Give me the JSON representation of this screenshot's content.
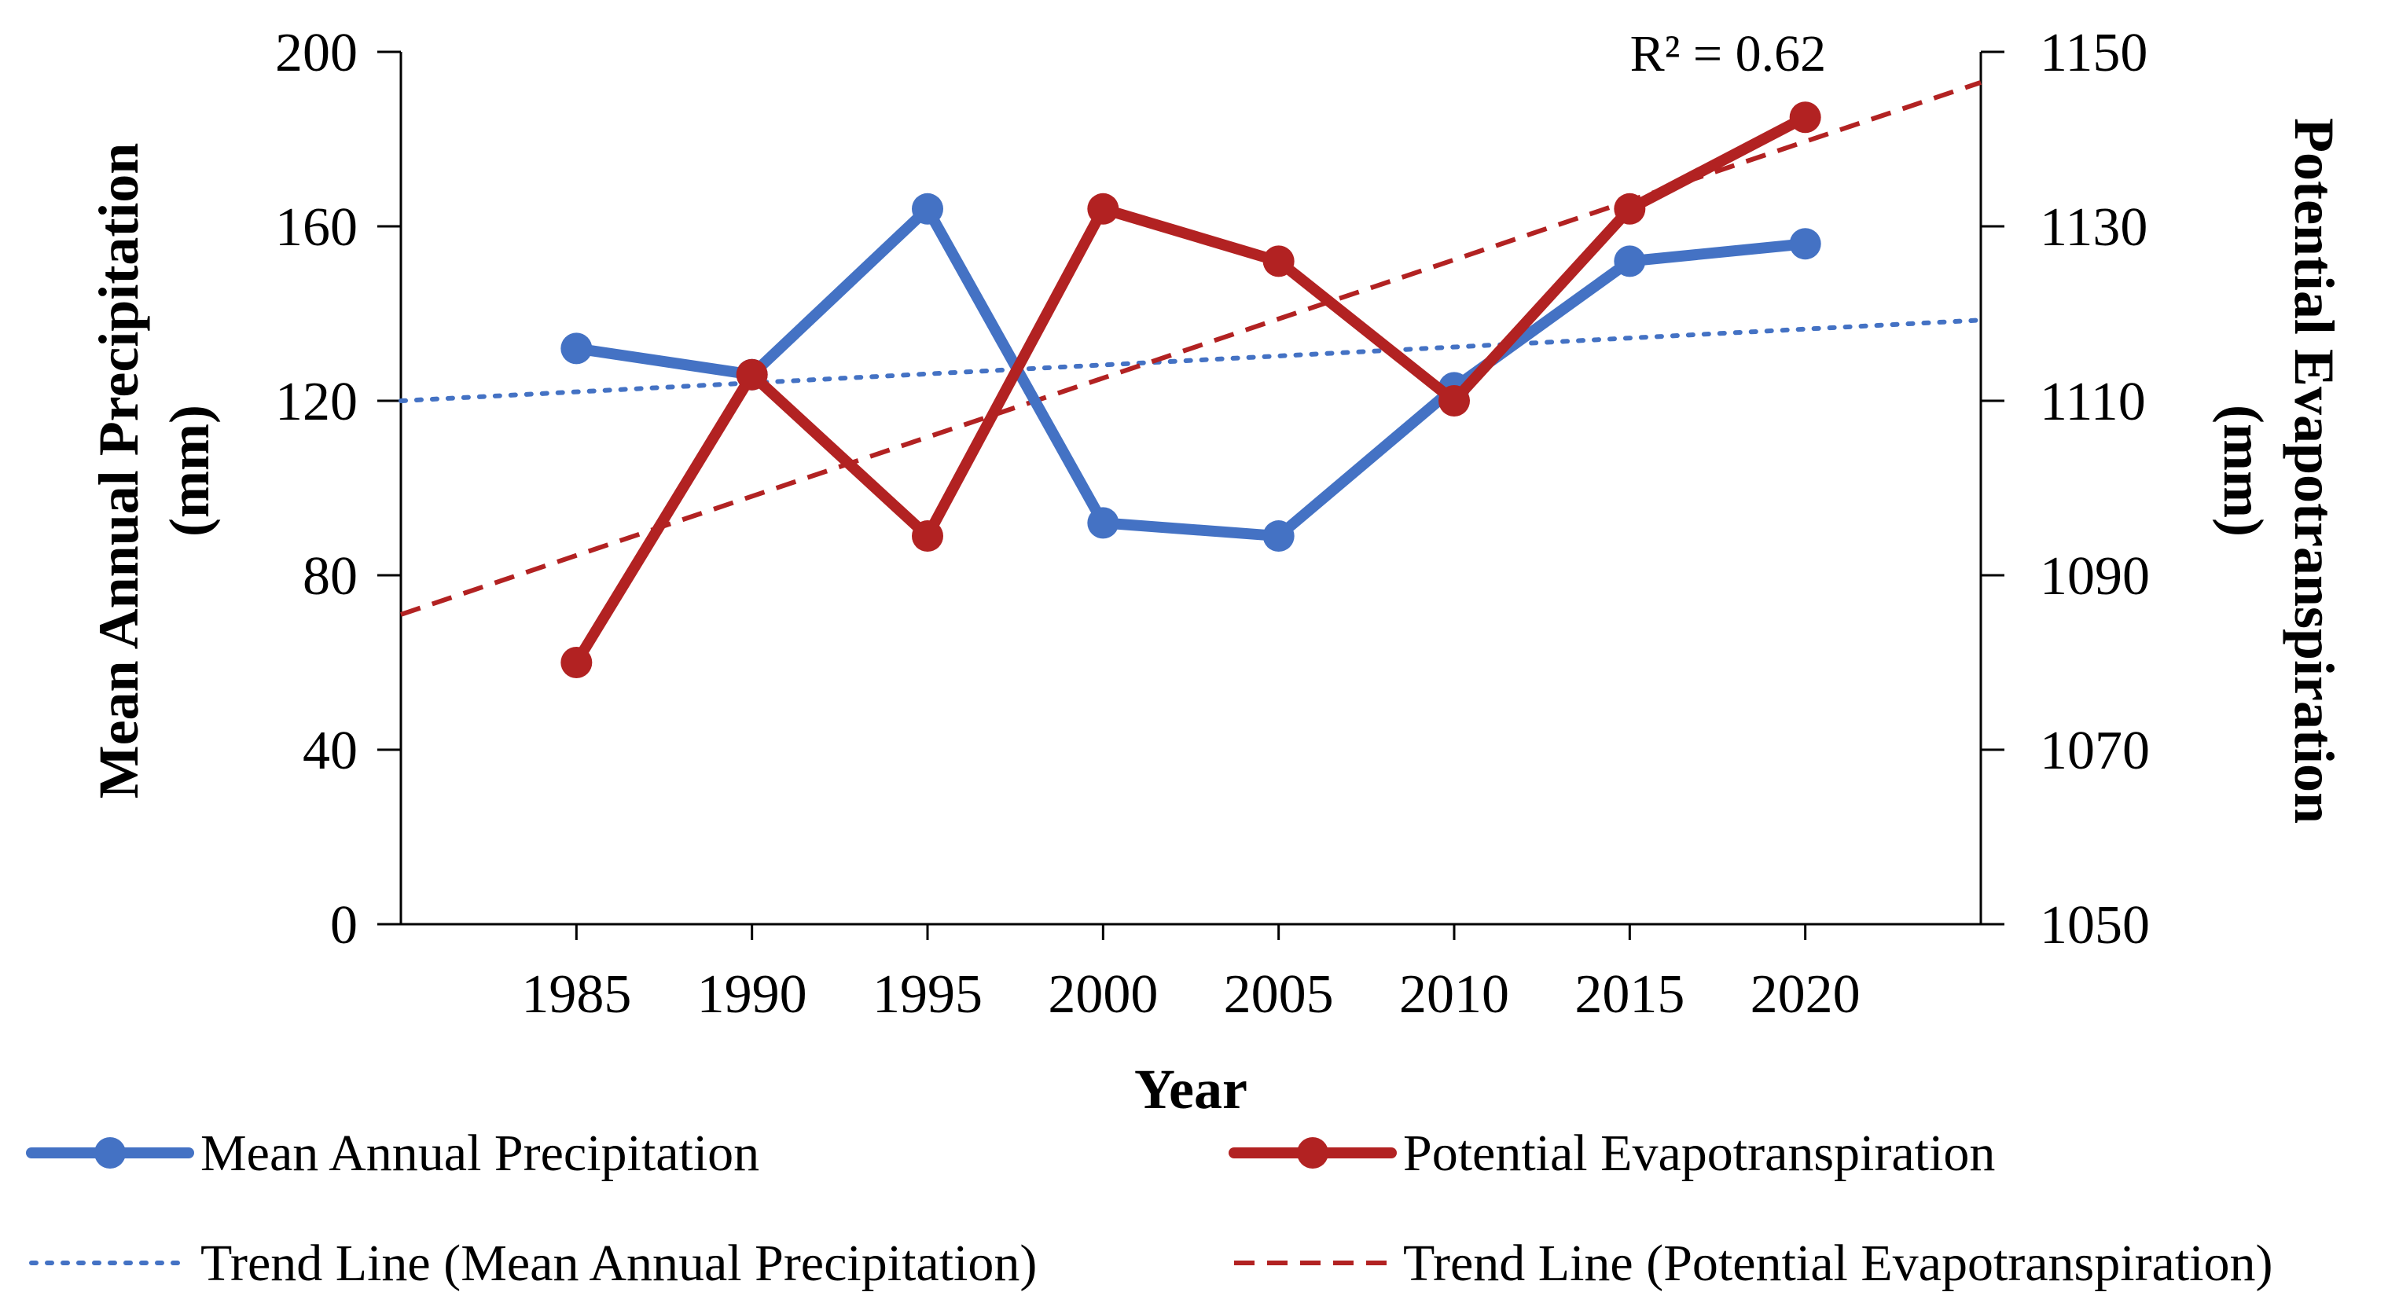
{
  "chart_data": {
    "type": "line",
    "title": "",
    "xlabel": "Year",
    "ylabel": "Mean Annual Precipitation (mm)",
    "ylabel_lines": [
      "Mean Annual Precipitation",
      "(mm)"
    ],
    "y2label": "Potential Evapotranspiration (mm)",
    "y2label_lines": [
      "Potential Evapotranspiration",
      "(mm)"
    ],
    "x": [
      1985,
      1990,
      1995,
      2000,
      2005,
      2010,
      2015,
      2020
    ],
    "x_tick_labels": [
      "1985",
      "1990",
      "1995",
      "2000",
      "2005",
      "2010",
      "2015",
      "2020"
    ],
    "xlim": [
      1980,
      2025
    ],
    "ylim": [
      0,
      200
    ],
    "y_ticks": [
      0,
      40,
      80,
      120,
      160,
      200
    ],
    "y2lim": [
      1050,
      1150
    ],
    "y2_ticks": [
      1050,
      1070,
      1090,
      1110,
      1130,
      1150
    ],
    "grid": false,
    "legend_position": "bottom",
    "series": [
      {
        "name": "Mean Annual Precipitation",
        "axis": "left",
        "color": "#4472C4",
        "style": "solid-marker",
        "values": [
          132,
          126,
          164,
          92,
          89,
          123,
          152,
          156
        ]
      },
      {
        "name": "Potential Evapotranspiration",
        "axis": "right",
        "color": "#B22222",
        "style": "solid-marker",
        "values": [
          1080,
          1113,
          1094.5,
          1132,
          1126,
          1110,
          1132,
          1142.5
        ]
      }
    ],
    "trendlines": [
      {
        "name": "Trend Line (Mean Annual Precipitation)",
        "axis": "left",
        "color": "#4472C4",
        "style": "dotted",
        "x": [
          1980,
          2025
        ],
        "values": [
          120,
          138.5
        ]
      },
      {
        "name": "Trend Line (Potential Evapotranspiration)",
        "axis": "right",
        "color": "#B22222",
        "style": "dashed",
        "x": [
          1980,
          2025
        ],
        "values": [
          1085.5,
          1146.5
        ]
      }
    ],
    "annotations": [
      {
        "text": "R² = 0.62",
        "x": 2017.8,
        "axis": "right",
        "y": 1150
      }
    ]
  }
}
